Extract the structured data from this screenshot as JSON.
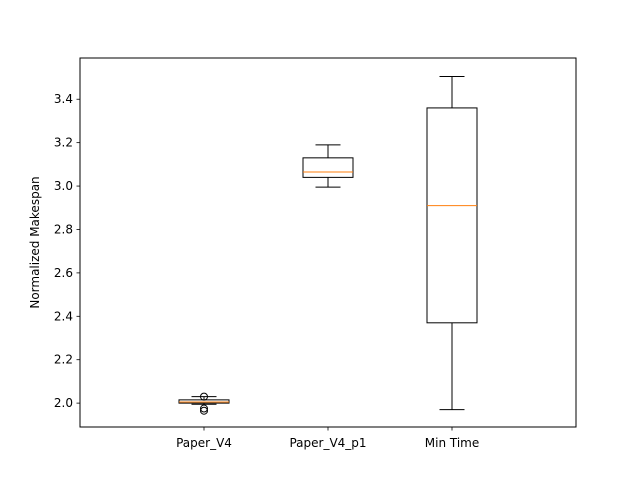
{
  "chart_data": {
    "type": "box",
    "title": "",
    "xlabel": "",
    "ylabel": "Normalized Makespan",
    "ylim": [
      1.89,
      3.59
    ],
    "yticks": [
      2.0,
      2.2,
      2.4,
      2.6,
      2.8,
      3.0,
      3.2,
      3.4
    ],
    "ytick_labels": [
      "2.0",
      "2.2",
      "2.4",
      "2.6",
      "2.8",
      "3.0",
      "3.2",
      "3.4"
    ],
    "grid": false,
    "categories": [
      "Paper_V4",
      "Paper_V4_p1",
      "Min Time"
    ],
    "series": [
      {
        "name": "Paper_V4",
        "whisker_low": 1.995,
        "q1": 2.0,
        "median": 2.005,
        "q3": 2.015,
        "whisker_high": 2.03,
        "outliers": [
          1.965,
          1.975,
          2.03
        ]
      },
      {
        "name": "Paper_V4_p1",
        "whisker_low": 2.995,
        "q1": 3.04,
        "median": 3.065,
        "q3": 3.13,
        "whisker_high": 3.19,
        "outliers": []
      },
      {
        "name": "Min Time",
        "whisker_low": 1.97,
        "q1": 2.37,
        "median": 2.91,
        "q3": 3.36,
        "whisker_high": 3.505,
        "outliers": []
      }
    ],
    "colors": {
      "box": "#000000",
      "median": "#ff7f0e",
      "axes": "#000000"
    }
  }
}
